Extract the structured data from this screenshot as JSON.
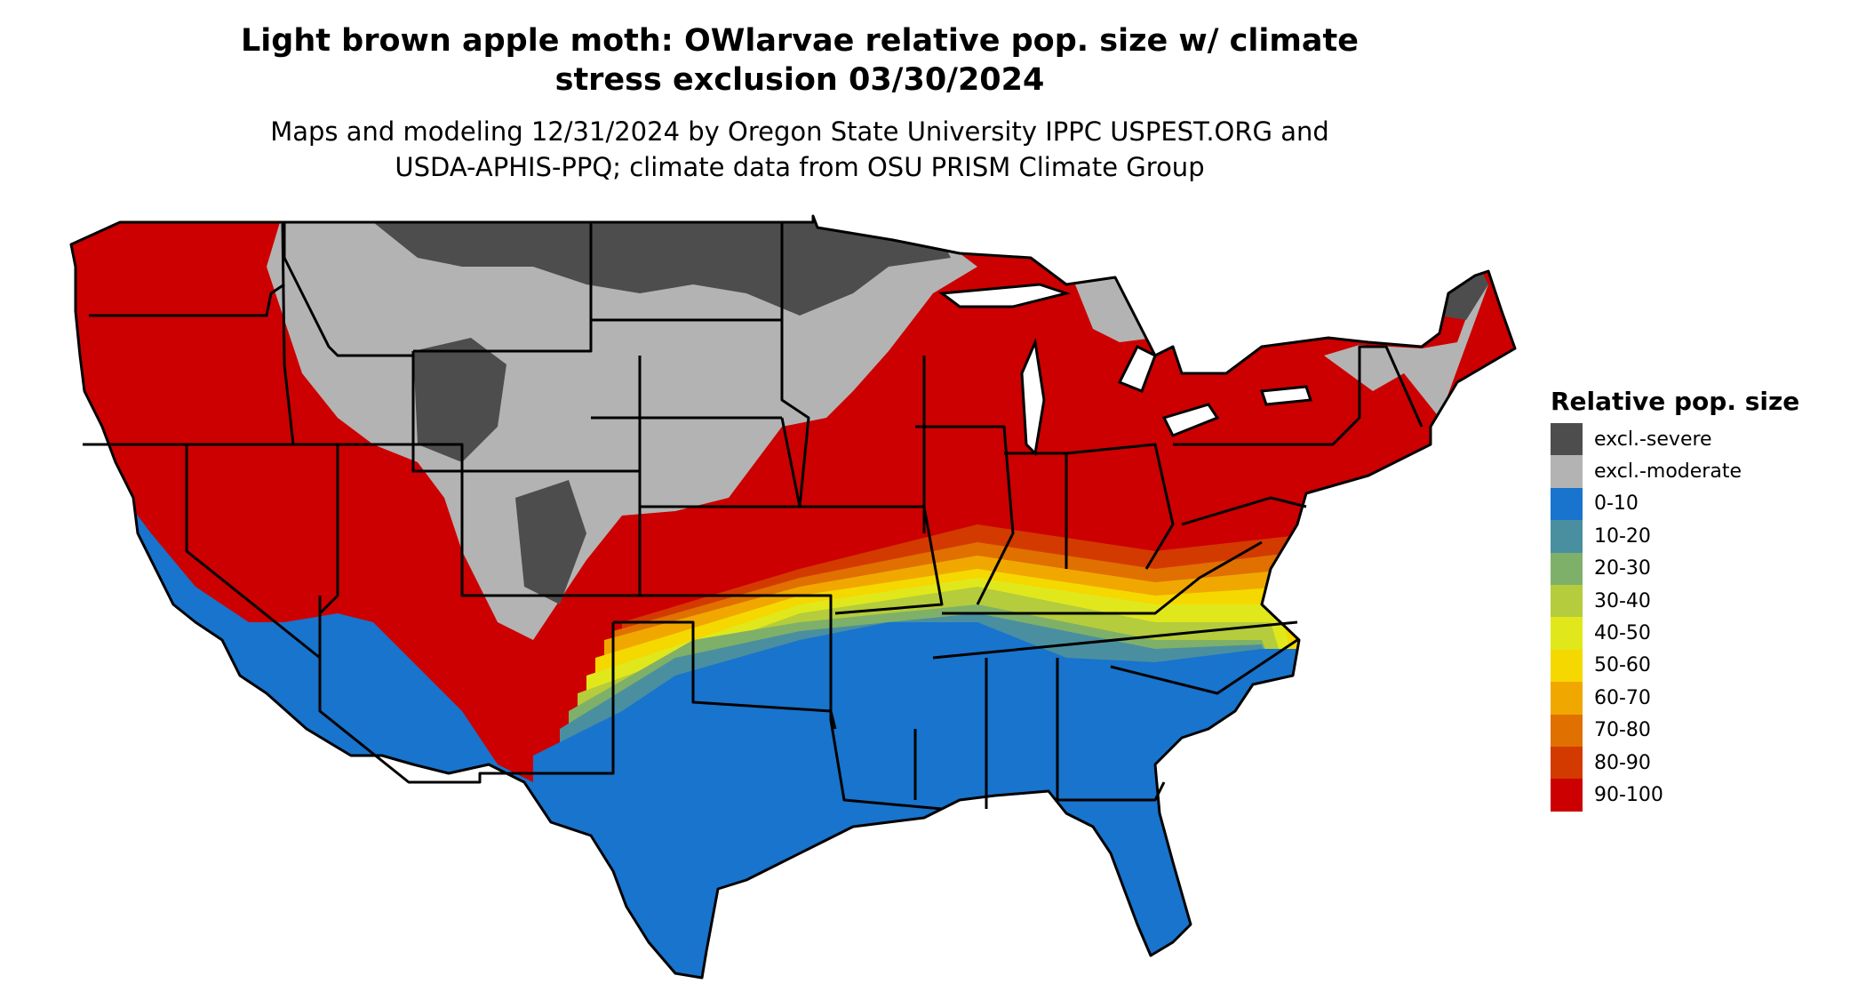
{
  "title_line1": "Light brown apple moth: OWlarvae relative pop. size w/ climate",
  "title_line2": "stress exclusion 03/30/2024",
  "subtitle_line1": "Maps and modeling 12/31/2024 by Oregon State University IPPC USPEST.ORG and",
  "subtitle_line2": "USDA-APHIS-PPQ; climate data from OSU PRISM Climate Group",
  "legend": {
    "title": "Relative pop. size",
    "items": [
      {
        "label": "excl.-severe",
        "color": "#4d4d4d"
      },
      {
        "label": "excl.-moderate",
        "color": "#b3b3b3"
      },
      {
        "label": "0-10",
        "color": "#1874cd"
      },
      {
        "label": "10-20",
        "color": "#4a8fa0"
      },
      {
        "label": "20-30",
        "color": "#7fb069"
      },
      {
        "label": "30-40",
        "color": "#b5cc3c"
      },
      {
        "label": "40-50",
        "color": "#e0e81c"
      },
      {
        "label": "50-60",
        "color": "#f5d800"
      },
      {
        "label": "60-70",
        "color": "#f0a800"
      },
      {
        "label": "70-80",
        "color": "#e07000"
      },
      {
        "label": "80-90",
        "color": "#d33a00"
      },
      {
        "label": "90-100",
        "color": "#cc0000"
      }
    ]
  }
}
